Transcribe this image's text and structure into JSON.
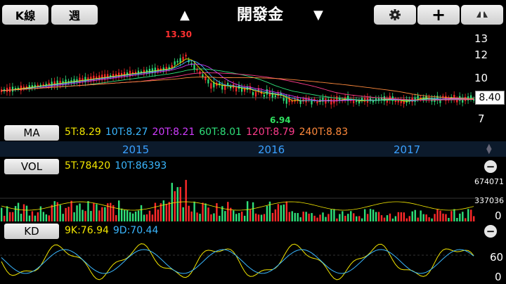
{
  "toolbar": {
    "kline_label": "K線",
    "period_label": "週",
    "stock_name": "開發金",
    "up_arrow": "▲",
    "down_arrow": "▼",
    "settings_icon": "gear-icon",
    "add_icon": "plus-icon",
    "share_icon": "share-icon"
  },
  "price_chart": {
    "high_label": "13.30",
    "low_label": "6.94",
    "current_price": "8.40",
    "y_ticks": [
      "13",
      "12",
      "10",
      "7"
    ]
  },
  "ma": {
    "label": "MA",
    "items": [
      {
        "text": "5T:8.29",
        "color": "#f2e600"
      },
      {
        "text": "10T:8.27",
        "color": "#3ab7ff"
      },
      {
        "text": "20T:8.21",
        "color": "#d13cff"
      },
      {
        "text": "60T:8.01",
        "color": "#2fe07a"
      },
      {
        "text": "120T:8.79",
        "color": "#ff3c8c"
      },
      {
        "text": "240T:8.83",
        "color": "#ff8a3c"
      }
    ]
  },
  "years": [
    "2015",
    "2016",
    "2017"
  ],
  "vol": {
    "label": "VOL",
    "items": [
      {
        "text": "5T:78420",
        "color": "#f2e600"
      },
      {
        "text": "10T:86393",
        "color": "#3ab7ff"
      }
    ],
    "y_ticks": [
      "674071",
      "337036",
      "0"
    ]
  },
  "kd": {
    "label": "KD",
    "items": [
      {
        "text": "9K:76.94",
        "color": "#f2e600"
      },
      {
        "text": "9D:70.44",
        "color": "#3ab7ff"
      }
    ],
    "y_ticks": [
      "60",
      "0"
    ]
  }
}
